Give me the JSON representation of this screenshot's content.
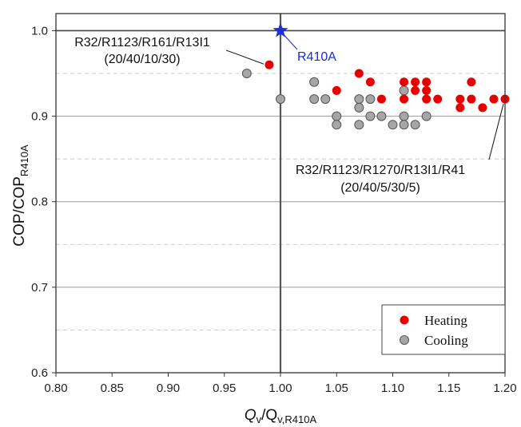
{
  "chart_data": {
    "type": "scatter",
    "xlabel": "Q",
    "xlabel_sub": "v",
    "xlabel_den": "/Q",
    "xlabel_den_sub": "v,R410A",
    "ylabel": "COP/COP",
    "ylabel_sub": "R410A",
    "xlim": [
      0.8,
      1.2
    ],
    "ylim": [
      0.6,
      1.02
    ],
    "x_ticks": [
      "0.80",
      "0.85",
      "0.90",
      "0.95",
      "1.00",
      "1.05",
      "1.10",
      "1.15",
      "1.20"
    ],
    "y_ticks": [
      "0.6",
      "0.7",
      "0.8",
      "0.9",
      "1.0"
    ],
    "grid": "solid major, dashed minor horizontal",
    "legend_position": "bottom-right",
    "reference": {
      "name": "R410A",
      "x": 1.0,
      "y": 1.0,
      "color": "#1f2fd6"
    },
    "series": [
      {
        "name": "Heating",
        "color": "#e60000",
        "points": [
          [
            0.99,
            0.96
          ],
          [
            1.05,
            0.93
          ],
          [
            1.07,
            0.95
          ],
          [
            1.08,
            0.94
          ],
          [
            1.09,
            0.92
          ],
          [
            1.11,
            0.94
          ],
          [
            1.11,
            0.92
          ],
          [
            1.12,
            0.94
          ],
          [
            1.12,
            0.93
          ],
          [
            1.13,
            0.94
          ],
          [
            1.13,
            0.93
          ],
          [
            1.13,
            0.92
          ],
          [
            1.14,
            0.92
          ],
          [
            1.16,
            0.92
          ],
          [
            1.16,
            0.91
          ],
          [
            1.17,
            0.94
          ],
          [
            1.17,
            0.92
          ],
          [
            1.18,
            0.91
          ],
          [
            1.19,
            0.92
          ],
          [
            1.2,
            0.92
          ]
        ]
      },
      {
        "name": "Cooling",
        "color": "#a6a6a6",
        "points": [
          [
            0.97,
            0.95
          ],
          [
            1.0,
            0.92
          ],
          [
            1.03,
            0.94
          ],
          [
            1.03,
            0.92
          ],
          [
            1.04,
            0.92
          ],
          [
            1.05,
            0.9
          ],
          [
            1.05,
            0.89
          ],
          [
            1.07,
            0.92
          ],
          [
            1.07,
            0.91
          ],
          [
            1.07,
            0.89
          ],
          [
            1.08,
            0.92
          ],
          [
            1.08,
            0.9
          ],
          [
            1.09,
            0.9
          ],
          [
            1.1,
            0.89
          ],
          [
            1.11,
            0.93
          ],
          [
            1.11,
            0.9
          ],
          [
            1.11,
            0.89
          ],
          [
            1.12,
            0.89
          ],
          [
            1.13,
            0.9
          ]
        ]
      }
    ],
    "annotations": [
      {
        "lines": [
          "R32/R1123/R161/R13I1",
          "(20/40/10/30)"
        ],
        "target": [
          0.99,
          0.96
        ]
      },
      {
        "lines": [
          "R32/R1123/R1270/R13I1/R41",
          "(20/40/5/30/5)"
        ],
        "target": [
          1.2,
          0.92
        ]
      },
      {
        "lines": [
          "R410A"
        ],
        "target": [
          1.0,
          1.0
        ]
      }
    ]
  }
}
